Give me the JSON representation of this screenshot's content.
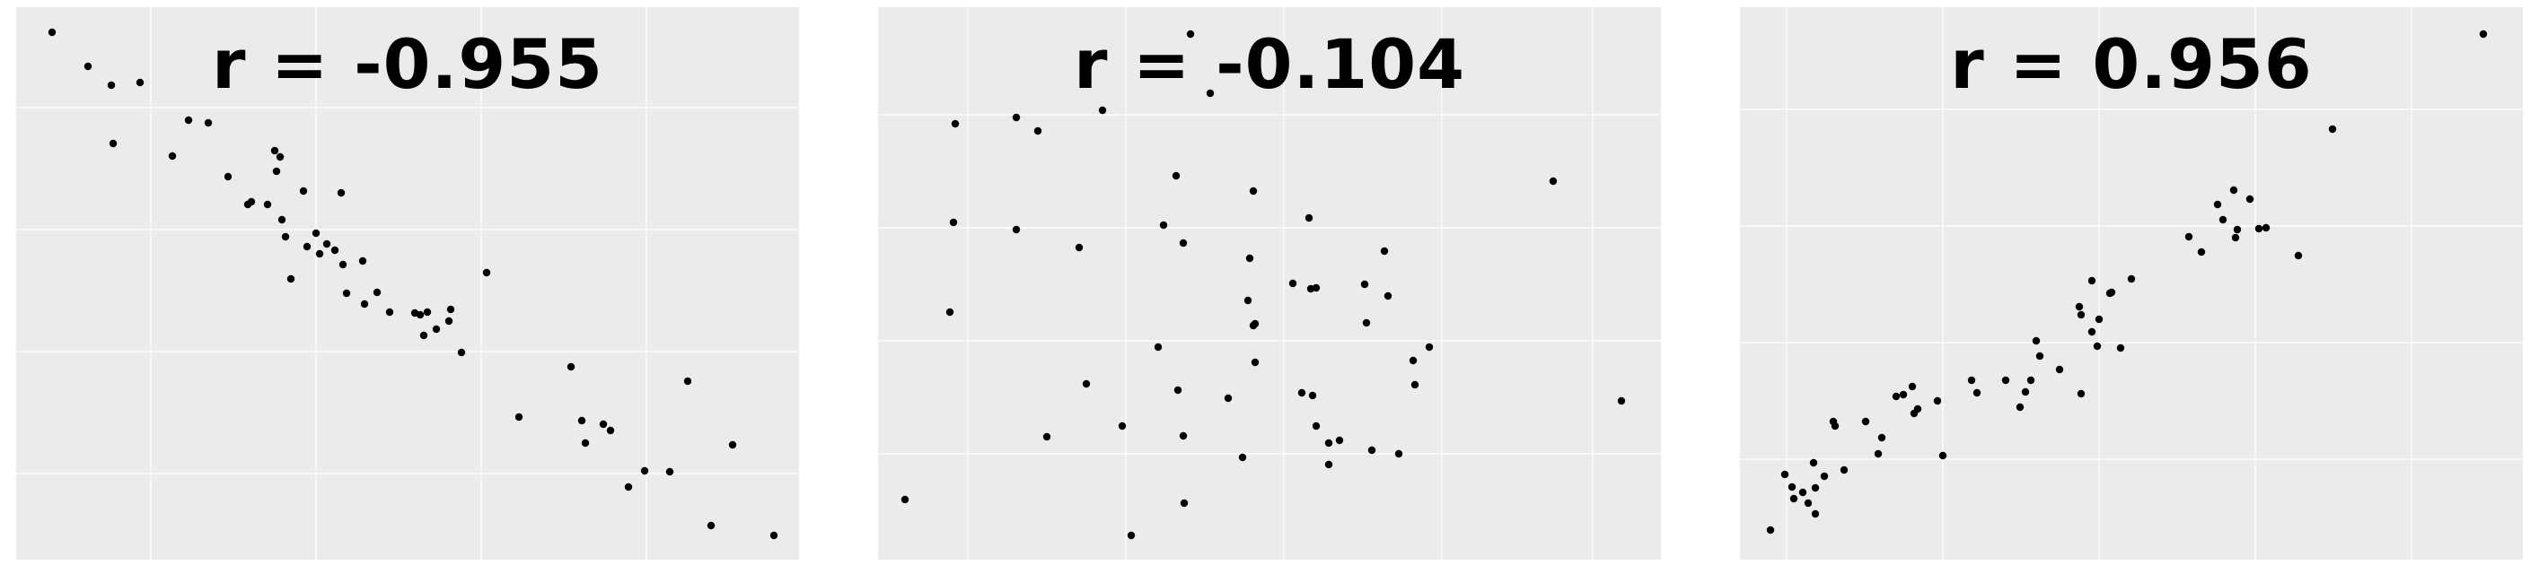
{
  "chart_data": [
    {
      "type": "scatter",
      "annotation": "r = -0.955",
      "grid": true,
      "series": [
        {
          "points": [
            [
              40,
              28
            ],
            [
              80,
              66
            ],
            [
              106,
              87
            ],
            [
              138,
              84
            ],
            [
              108,
              152
            ],
            [
              192,
              126
            ],
            [
              214,
              129
            ],
            [
              174,
              166
            ],
            [
              236,
              189
            ],
            [
              258,
              220
            ],
            [
              262,
              217
            ],
            [
              288,
              160
            ],
            [
              294,
              167
            ],
            [
              290,
              183
            ],
            [
              320,
              205
            ],
            [
              280,
              220
            ],
            [
              306,
              303
            ],
            [
              296,
              237
            ],
            [
              334,
              252
            ],
            [
              300,
              256
            ],
            [
              362,
              207
            ],
            [
              346,
              264
            ],
            [
              324,
              267
            ],
            [
              355,
              271
            ],
            [
              338,
              275
            ],
            [
              364,
              287
            ],
            [
              386,
              283
            ],
            [
              368,
              319
            ],
            [
              402,
              318
            ],
            [
              388,
              331
            ],
            [
              444,
              341
            ],
            [
              416,
              340
            ],
            [
              450,
              343
            ],
            [
              484,
              337
            ],
            [
              458,
              340
            ],
            [
              454,
              366
            ],
            [
              482,
              350
            ],
            [
              468,
              359
            ],
            [
              496,
              385
            ],
            [
              524,
              296
            ],
            [
              560,
              457
            ],
            [
              618,
              401
            ],
            [
              630,
              461
            ],
            [
              654,
              465
            ],
            [
              634,
              486
            ],
            [
              662,
              472
            ],
            [
              700,
              517
            ],
            [
              682,
              535
            ],
            [
              748,
              417
            ],
            [
              728,
              518
            ],
            [
              798,
              488
            ],
            [
              774,
              578
            ],
            [
              844,
              589
            ]
          ]
        }
      ]
    },
    {
      "type": "scatter",
      "annotation": "r = -0.104",
      "grid": true,
      "series": [
        {
          "points": [
            [
              348,
              30
            ],
            [
              86,
              130
            ],
            [
              154,
              123
            ],
            [
              178,
              138
            ],
            [
              250,
              115
            ],
            [
              370,
              96
            ],
            [
              332,
              188
            ],
            [
              84,
              240
            ],
            [
              80,
              340
            ],
            [
              154,
              248
            ],
            [
              224,
              268
            ],
            [
              318,
              243
            ],
            [
              340,
              263
            ],
            [
              418,
              205
            ],
            [
              414,
              280
            ],
            [
              412,
              327
            ],
            [
              420,
              353
            ],
            [
              418,
              355
            ],
            [
              480,
              235
            ],
            [
              462,
              308
            ],
            [
              542,
              309
            ],
            [
              482,
              314
            ],
            [
              568,
              322
            ],
            [
              488,
              313
            ],
            [
              544,
              352
            ],
            [
              420,
              396
            ],
            [
              472,
              430
            ],
            [
              564,
              272
            ],
            [
              484,
              433
            ],
            [
              596,
              394
            ],
            [
              614,
              379
            ],
            [
              312,
              379
            ],
            [
              390,
              436
            ],
            [
              598,
              421
            ],
            [
              232,
              420
            ],
            [
              334,
              427
            ],
            [
              188,
              479
            ],
            [
              272,
              467
            ],
            [
              340,
              478
            ],
            [
              488,
              467
            ],
            [
              514,
              483
            ],
            [
              502,
              486
            ],
            [
              550,
              494
            ],
            [
              502,
              510
            ],
            [
              580,
              498
            ],
            [
              406,
              502
            ],
            [
              30,
              549
            ],
            [
              341,
              553
            ],
            [
              282,
              589
            ],
            [
              752,
              194
            ],
            [
              828,
              439
            ]
          ]
        }
      ]
    },
    {
      "type": "scatter",
      "annotation": "r = 0.956",
      "grid": true,
      "series": [
        {
          "points": [
            [
              828,
              30
            ],
            [
              660,
              136
            ],
            [
              550,
              204
            ],
            [
              568,
              214
            ],
            [
              532,
              220
            ],
            [
              538,
              237
            ],
            [
              586,
              246
            ],
            [
              578,
              247
            ],
            [
              554,
              248
            ],
            [
              552,
              257
            ],
            [
              622,
              277
            ],
            [
              514,
              273
            ],
            [
              500,
              256
            ],
            [
              436,
              303
            ],
            [
              392,
              305
            ],
            [
              414,
              318
            ],
            [
              412,
              319
            ],
            [
              378,
              334
            ],
            [
              380,
              343
            ],
            [
              400,
              348
            ],
            [
              392,
              362
            ],
            [
              398,
              378
            ],
            [
              330,
              372
            ],
            [
              424,
              380
            ],
            [
              334,
              389
            ],
            [
              356,
              404
            ],
            [
              324,
              416
            ],
            [
              296,
              416
            ],
            [
              258,
              416
            ],
            [
              264,
              430
            ],
            [
              318,
              429
            ],
            [
              380,
              431
            ],
            [
              192,
              423
            ],
            [
              182,
              432
            ],
            [
              220,
              439
            ],
            [
              198,
              448
            ],
            [
              174,
              434
            ],
            [
              312,
              446
            ],
            [
              194,
              453
            ],
            [
              140,
              462
            ],
            [
              158,
              480
            ],
            [
              104,
              462
            ],
            [
              106,
              467
            ],
            [
              154,
              498
            ],
            [
              226,
              500
            ],
            [
              82,
              508
            ],
            [
              116,
              516
            ],
            [
              50,
              521
            ],
            [
              58,
              535
            ],
            [
              94,
              523
            ],
            [
              70,
              541
            ],
            [
              84,
              536
            ],
            [
              60,
              548
            ],
            [
              76,
              553
            ],
            [
              84,
              565
            ],
            [
              34,
              583
            ]
          ]
        }
      ]
    }
  ]
}
